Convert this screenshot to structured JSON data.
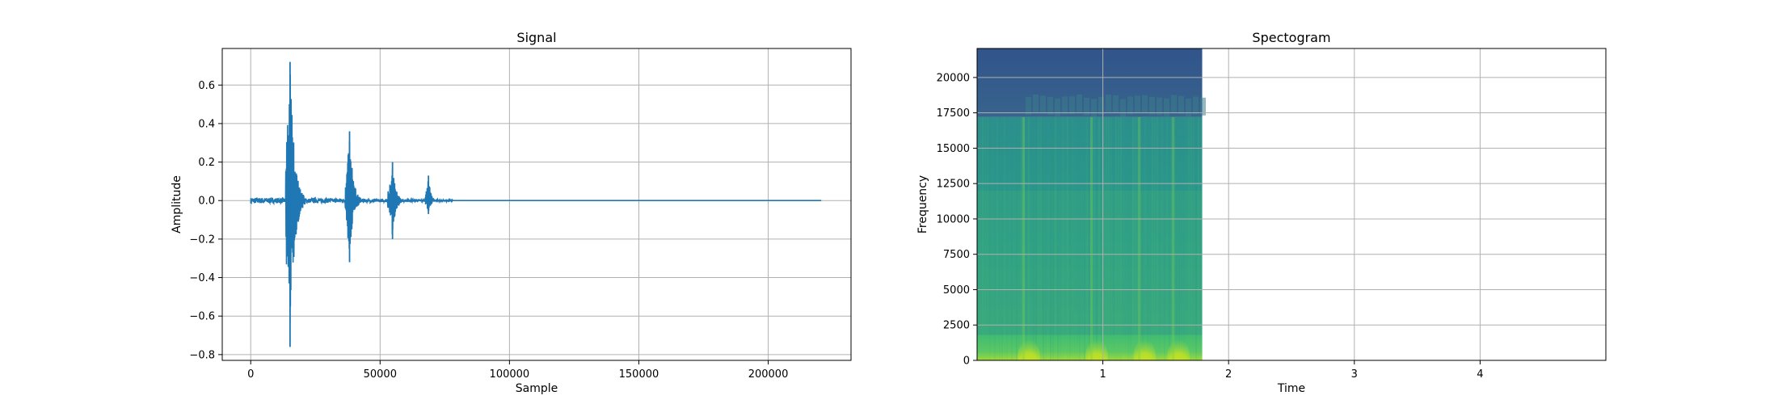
{
  "chart_data": [
    {
      "type": "line",
      "title": "Signal",
      "xlabel": "Sample",
      "ylabel": "Amplitude",
      "xlim": [
        -11000,
        232000
      ],
      "ylim": [
        -0.83,
        0.79
      ],
      "xticks": [
        0,
        50000,
        100000,
        150000,
        200000
      ],
      "xtick_labels": [
        "0",
        "50000",
        "100000",
        "150000",
        "200000"
      ],
      "yticks": [
        -0.8,
        -0.6,
        -0.4,
        -0.2,
        0.0,
        0.2,
        0.4,
        0.6
      ],
      "ytick_labels": [
        "−0.8",
        "−0.6",
        "−0.4",
        "−0.2",
        "0.0",
        "0.2",
        "0.4",
        "0.6"
      ],
      "grid": true,
      "series_color": "#1f77b4",
      "x_total_samples": 220500,
      "bursts": [
        {
          "x_start": 13500,
          "x_end": 21000,
          "peak_positive": 0.72,
          "peak_negative": -0.76,
          "peak_x": 15200
        },
        {
          "x_start": 36500,
          "x_end": 42500,
          "peak_positive": 0.36,
          "peak_negative": -0.32,
          "peak_x": 38200
        },
        {
          "x_start": 53000,
          "x_end": 58500,
          "peak_positive": 0.2,
          "peak_negative": -0.2,
          "peak_x": 54800
        },
        {
          "x_start": 67500,
          "x_end": 71500,
          "peak_positive": 0.13,
          "peak_negative": -0.07,
          "peak_x": 68700
        }
      ],
      "noise_floor_until": 78000,
      "noise_amplitude": 0.015
    },
    {
      "type": "heatmap",
      "title": "Spectogram",
      "xlabel": "Time",
      "ylabel": "Frequency",
      "xlim": [
        0,
        5.0
      ],
      "ylim": [
        0,
        22050
      ],
      "xticks": [
        1,
        2,
        3,
        4
      ],
      "xtick_labels": [
        "1",
        "2",
        "3",
        "4"
      ],
      "yticks": [
        0,
        2500,
        5000,
        7500,
        10000,
        12500,
        15000,
        17500,
        20000
      ],
      "ytick_labels": [
        "0",
        "2500",
        "5000",
        "7500",
        "10000",
        "12500",
        "15000",
        "17500",
        "20000"
      ],
      "grid": true,
      "data_time_extent": [
        0,
        1.79
      ],
      "cutoff_frequency": 17200,
      "colormap": "viridis",
      "colors": {
        "high_band": "#33568b",
        "high_band_lighter": "#3a6e8c",
        "mid_band": "#2a9d8a",
        "mid_band_upper": "#2c8f8c",
        "low_band": "#5cc863",
        "peak": "#dde318"
      },
      "onsets": [
        0.36,
        0.9,
        1.28,
        1.55
      ]
    }
  ]
}
